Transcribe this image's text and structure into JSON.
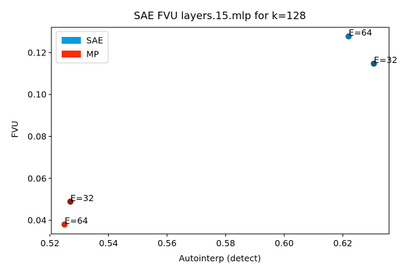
{
  "chart_data": {
    "type": "scatter",
    "title": "SAE FVU layers.15.mlp for k=128",
    "xlabel": "Autointerp (detect)",
    "ylabel": "FVU",
    "xlim": [
      0.5205,
      0.6358
    ],
    "ylim": [
      0.0335,
      0.132
    ],
    "xticks": [
      0.52,
      0.54,
      0.56,
      0.58,
      0.6,
      0.62
    ],
    "xtick_labels": [
      "0.52",
      "0.54",
      "0.56",
      "0.58",
      "0.60",
      "0.62"
    ],
    "yticks": [
      0.04,
      0.06,
      0.08,
      0.1,
      0.12
    ],
    "ytick_labels": [
      "0.04",
      "0.06",
      "0.08",
      "0.10",
      "0.12"
    ],
    "grid": false,
    "legend": {
      "position": "top-left",
      "entries": [
        {
          "label": "SAE",
          "color": "#0a9bdf"
        },
        {
          "label": "MP",
          "color": "#ff2a00"
        }
      ]
    },
    "points": [
      {
        "series": "SAE",
        "label": "E=64",
        "x": 0.622,
        "y": 0.1277,
        "color": "#0b74ad"
      },
      {
        "series": "SAE",
        "label": "E=32",
        "x": 0.6306,
        "y": 0.1147,
        "color": "#0c5a87"
      },
      {
        "series": "MP",
        "label": "E=32",
        "x": 0.527,
        "y": 0.0489,
        "color": "#8b1a0a"
      },
      {
        "series": "MP",
        "label": "E=64",
        "x": 0.525,
        "y": 0.038,
        "color": "#cc2a0c"
      }
    ]
  }
}
